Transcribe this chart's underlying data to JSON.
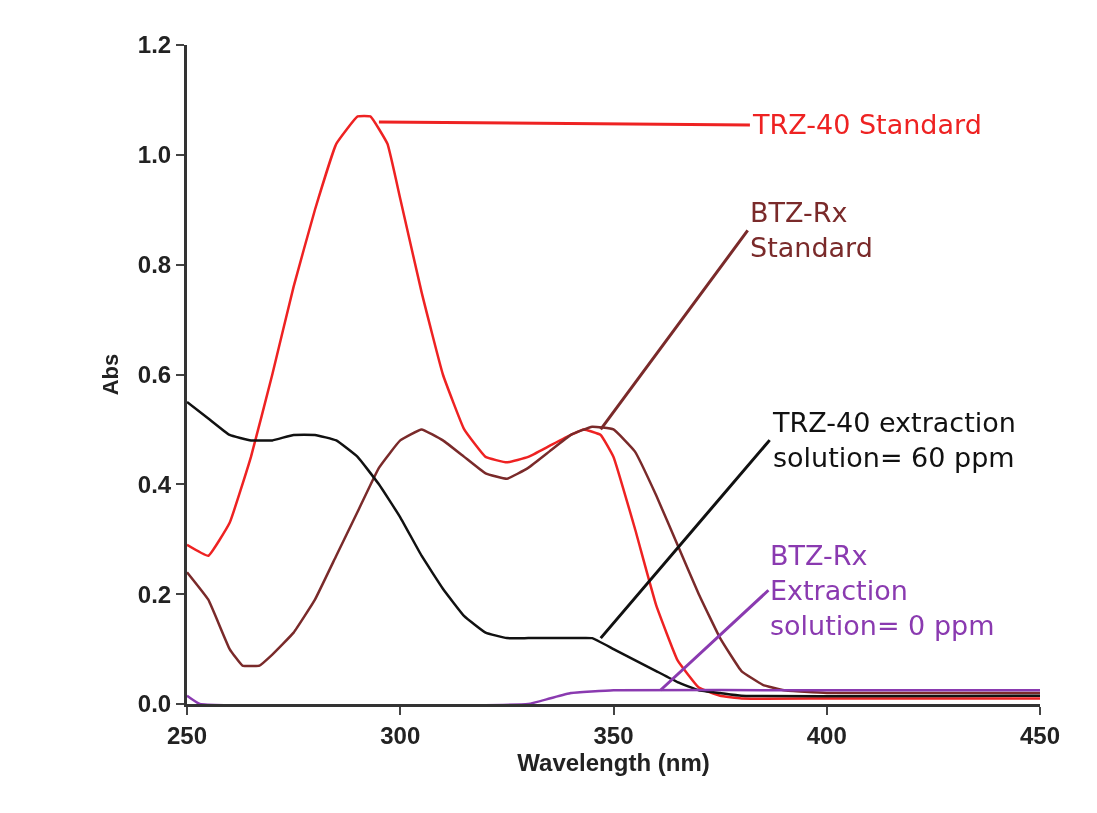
{
  "chart_data": {
    "type": "line",
    "xlabel": "Wavelength (nm)",
    "ylabel": "Abs",
    "xlim": [
      250,
      450
    ],
    "xticks": [
      250,
      300,
      350,
      400,
      450
    ],
    "ylim": [
      0,
      1.2
    ],
    "yticks": [
      {
        "value": 0,
        "label": "0.0"
      },
      0.2,
      0.4,
      0.6,
      0.8,
      {
        "value": 1,
        "label": "1.0"
      },
      1.2
    ],
    "marker": "none",
    "line_style": "solid",
    "series": [
      {
        "color": "#ee2222",
        "x": [
          250,
          255,
          260,
          265,
          270,
          275,
          280,
          285,
          290,
          293,
          297,
          300,
          305,
          310,
          315,
          320,
          325,
          330,
          335,
          340,
          343,
          347,
          350,
          355,
          360,
          365,
          370,
          375,
          380,
          400,
          450
        ],
        "values": [
          0.29,
          0.27,
          0.33,
          0.45,
          0.6,
          0.76,
          0.9,
          1.02,
          1.07,
          1.07,
          1.02,
          0.92,
          0.75,
          0.6,
          0.5,
          0.45,
          0.44,
          0.45,
          0.47,
          0.49,
          0.5,
          0.49,
          0.45,
          0.32,
          0.18,
          0.08,
          0.03,
          0.015,
          0.01,
          0.01,
          0.01
        ]
      },
      {
        "color": "#7a2a2a",
        "x": [
          250,
          255,
          260,
          263,
          267,
          270,
          275,
          280,
          285,
          290,
          295,
          300,
          305,
          310,
          315,
          320,
          325,
          330,
          335,
          340,
          345,
          350,
          355,
          360,
          365,
          370,
          375,
          380,
          385,
          390,
          400,
          450
        ],
        "values": [
          0.24,
          0.19,
          0.1,
          0.07,
          0.07,
          0.09,
          0.13,
          0.19,
          0.27,
          0.35,
          0.43,
          0.48,
          0.5,
          0.48,
          0.45,
          0.42,
          0.41,
          0.43,
          0.46,
          0.49,
          0.505,
          0.5,
          0.46,
          0.38,
          0.29,
          0.2,
          0.12,
          0.06,
          0.035,
          0.025,
          0.02,
          0.02
        ]
      },
      {
        "color": "#111111",
        "x": [
          250,
          255,
          260,
          265,
          270,
          275,
          280,
          285,
          290,
          295,
          300,
          305,
          310,
          315,
          320,
          325,
          330,
          340,
          345,
          350,
          355,
          360,
          365,
          370,
          375,
          380,
          450
        ],
        "values": [
          0.55,
          0.52,
          0.49,
          0.48,
          0.48,
          0.49,
          0.49,
          0.48,
          0.45,
          0.4,
          0.34,
          0.27,
          0.21,
          0.16,
          0.13,
          0.12,
          0.12,
          0.12,
          0.12,
          0.1,
          0.08,
          0.06,
          0.04,
          0.025,
          0.02,
          0.015,
          0.015
        ]
      },
      {
        "color": "#8a3ab0",
        "x": [
          250,
          253,
          330,
          335,
          340,
          350,
          400,
          450
        ],
        "values": [
          0.015,
          0,
          0,
          0.01,
          0.02,
          0.025,
          0.025,
          0.025
        ]
      }
    ],
    "annotations": [
      {
        "text": "TRZ-40 Standard",
        "x": 295,
        "y": 1.06
      },
      {
        "text": "BTZ-Rx\nStandard",
        "x": 347,
        "y": 0.5
      },
      {
        "text": "TRZ-40 extraction\nsolution= 60 ppm",
        "x": 347,
        "y": 0.12
      },
      {
        "text": "BTZ-Rx\nExtraction\nsolution= 0 ppm",
        "x": 361,
        "y": 0.025
      }
    ]
  }
}
